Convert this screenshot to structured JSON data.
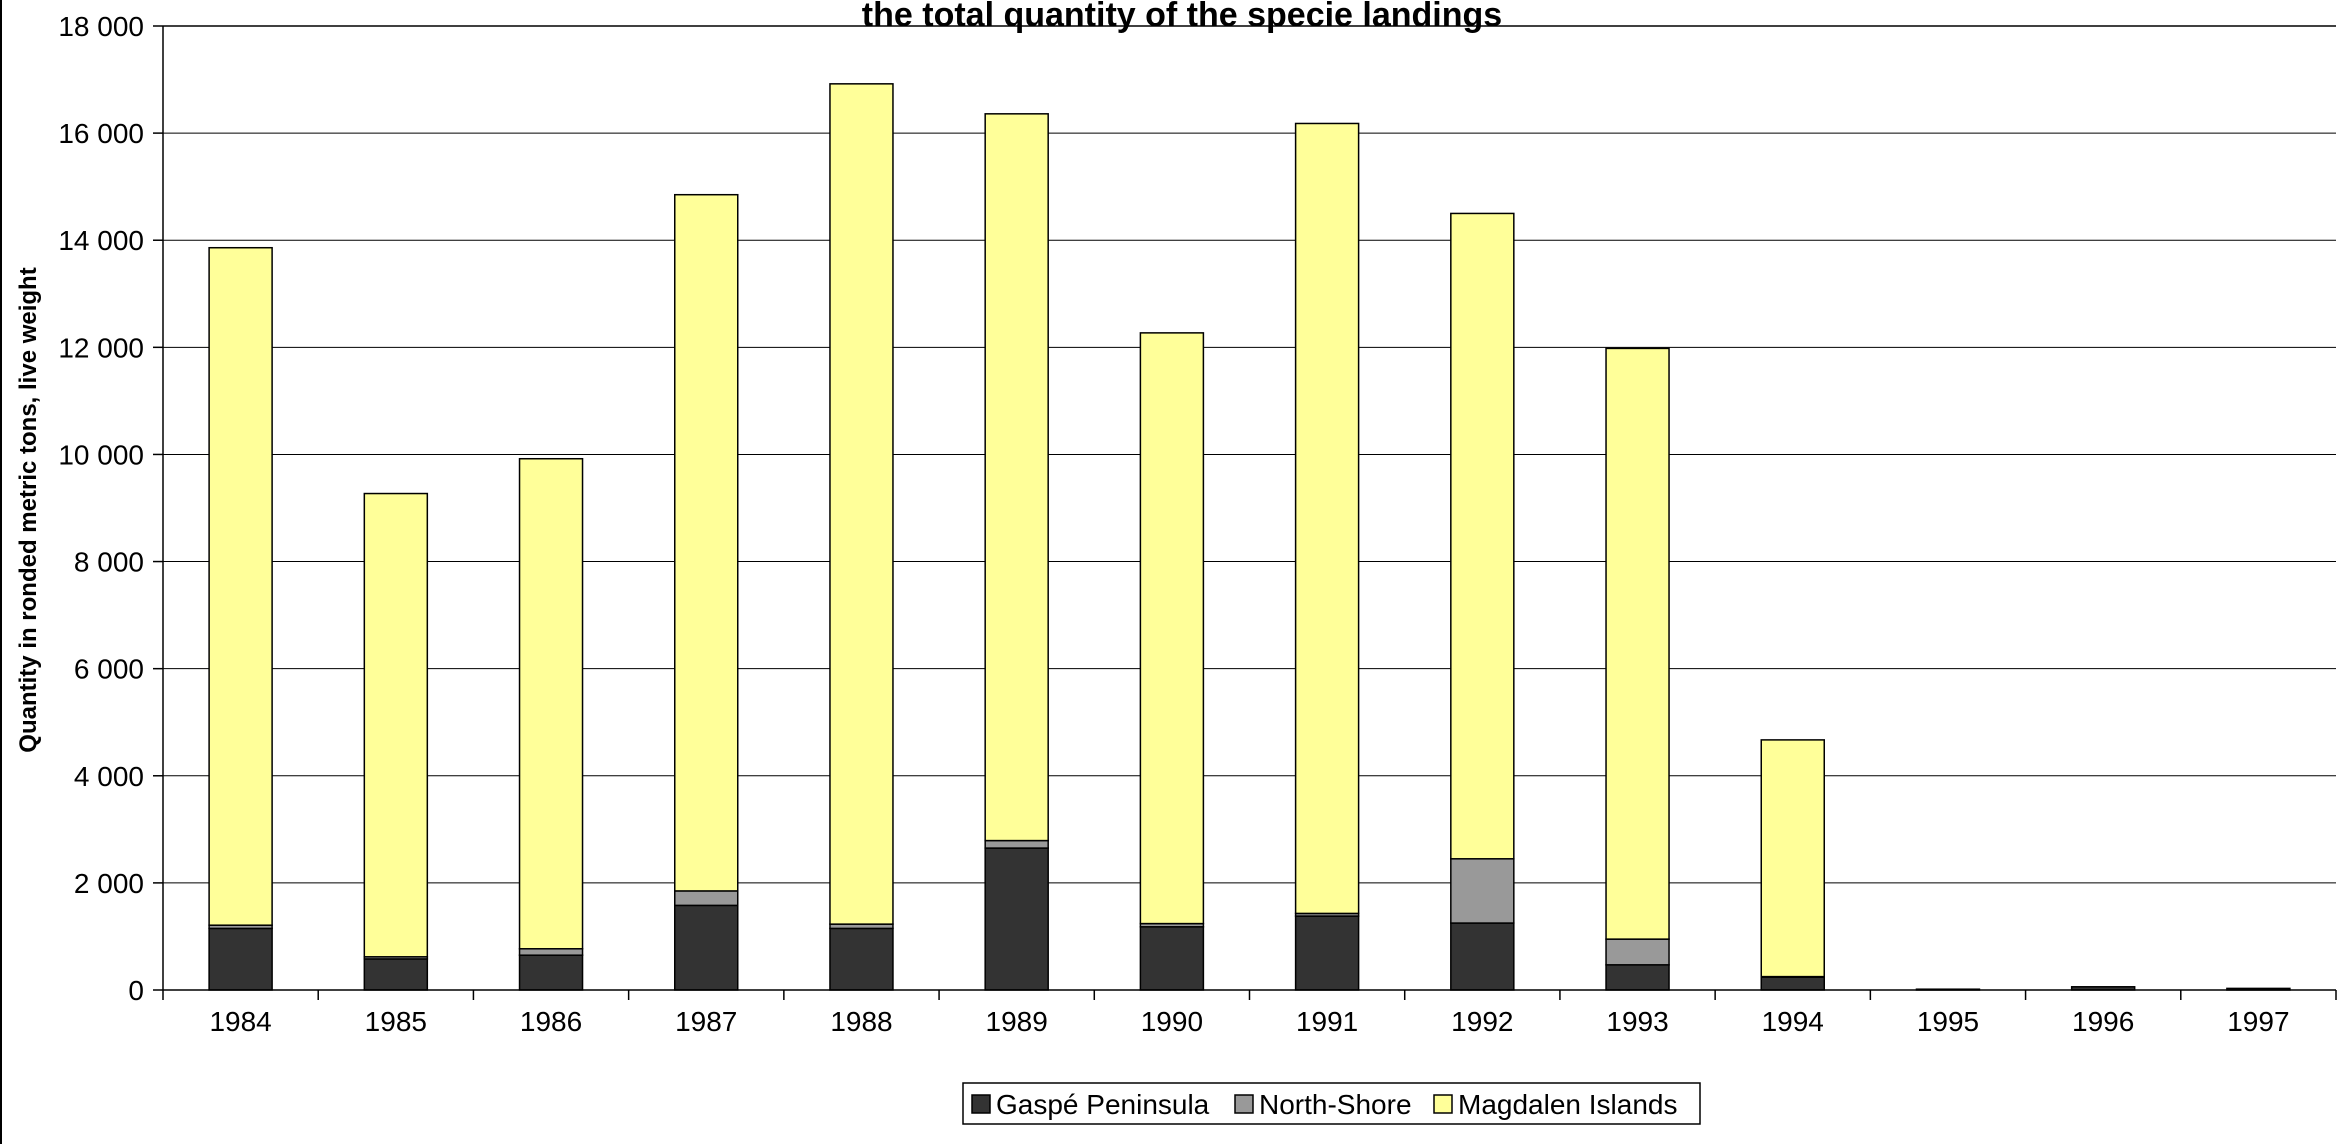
{
  "chart_data": {
    "type": "bar",
    "stacked": true,
    "title": "the total quantity of the specie landings",
    "xlabel": "",
    "ylabel": "Quantity in ronded metric tons, live weight",
    "ylim": [
      0,
      18000
    ],
    "ytick_step": 2000,
    "ytick_labels": [
      "0",
      "2 000",
      "4 000",
      "6 000",
      "8 000",
      "10 000",
      "12 000",
      "14 000",
      "16 000",
      "18 000"
    ],
    "grid": true,
    "legend_position": "bottom-center",
    "categories": [
      "1984",
      "1985",
      "1986",
      "1987",
      "1988",
      "1989",
      "1990",
      "1991",
      "1992",
      "1993",
      "1994",
      "1995",
      "1996",
      "1997"
    ],
    "series": [
      {
        "name": "Gaspé Peninsula",
        "color": "#333333",
        "values": [
          1150,
          580,
          650,
          1580,
          1150,
          2650,
          1180,
          1380,
          1250,
          470,
          240,
          15,
          60,
          30
        ]
      },
      {
        "name": "North-Shore",
        "color": "#999999",
        "values": [
          60,
          40,
          120,
          270,
          80,
          140,
          60,
          50,
          1200,
          480,
          10,
          0,
          0,
          0
        ]
      },
      {
        "name": "Magdalen Islands",
        "color": "#ffff99",
        "values": [
          12650,
          8650,
          9150,
          13000,
          15690,
          13570,
          11030,
          14750,
          12050,
          11030,
          4420,
          0,
          0,
          0
        ]
      }
    ]
  }
}
